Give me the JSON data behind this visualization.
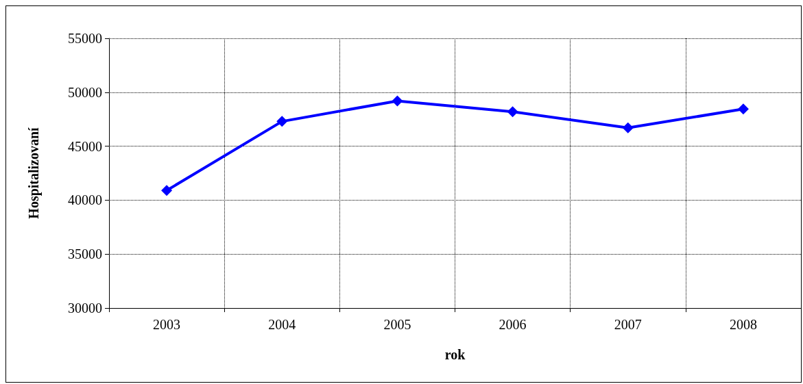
{
  "chart_data": {
    "type": "line",
    "xlabel": "rok",
    "ylabel": "Hospitalizovaní",
    "categories": [
      "2003",
      "2004",
      "2005",
      "2006",
      "2007",
      "2008"
    ],
    "series": [
      {
        "color": "#0000ff",
        "values": [
          40900,
          47300,
          49200,
          48200,
          46700,
          48450
        ]
      }
    ],
    "ylim": [
      30000,
      55000
    ],
    "yticks": [
      30000,
      35000,
      40000,
      45000,
      50000,
      55000
    ],
    "grid": true,
    "marker": "diamond",
    "line_style": "solid"
  }
}
